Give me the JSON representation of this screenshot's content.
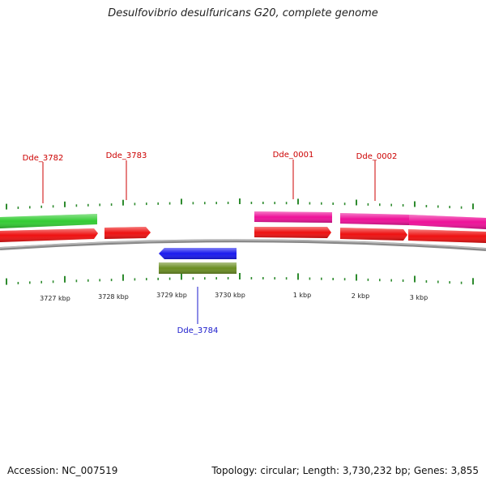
{
  "title": "Desulfovibrio desulfuricans G20, complete genome",
  "footer": {
    "accession": "Accession: NC_007519",
    "summary": "Topology: circular; Length: 3,730,232 bp; Genes: 3,855"
  },
  "colors": {
    "forward_gene": "#ee1111",
    "forward_gene_alt": "#ee1199",
    "green_gene": "#33cc33",
    "blue_gene": "#1a1aee",
    "olive_gene": "#6b8e23",
    "backbone": "#888888",
    "tick": "#2e8b2e",
    "label_forward": "#cc0000",
    "label_reverse": "#1a1acc"
  },
  "gene_labels": [
    {
      "name": "Dde_3782",
      "strand": "forward"
    },
    {
      "name": "Dde_3783",
      "strand": "forward"
    },
    {
      "name": "Dde_0001",
      "strand": "forward"
    },
    {
      "name": "Dde_0002",
      "strand": "forward"
    },
    {
      "name": "Dde_3784",
      "strand": "reverse"
    }
  ],
  "scale_labels": [
    "3727 kbp",
    "3728 kbp",
    "3729 kbp",
    "3730 kbp",
    "1 kbp",
    "2 kbp",
    "3 kbp"
  ]
}
